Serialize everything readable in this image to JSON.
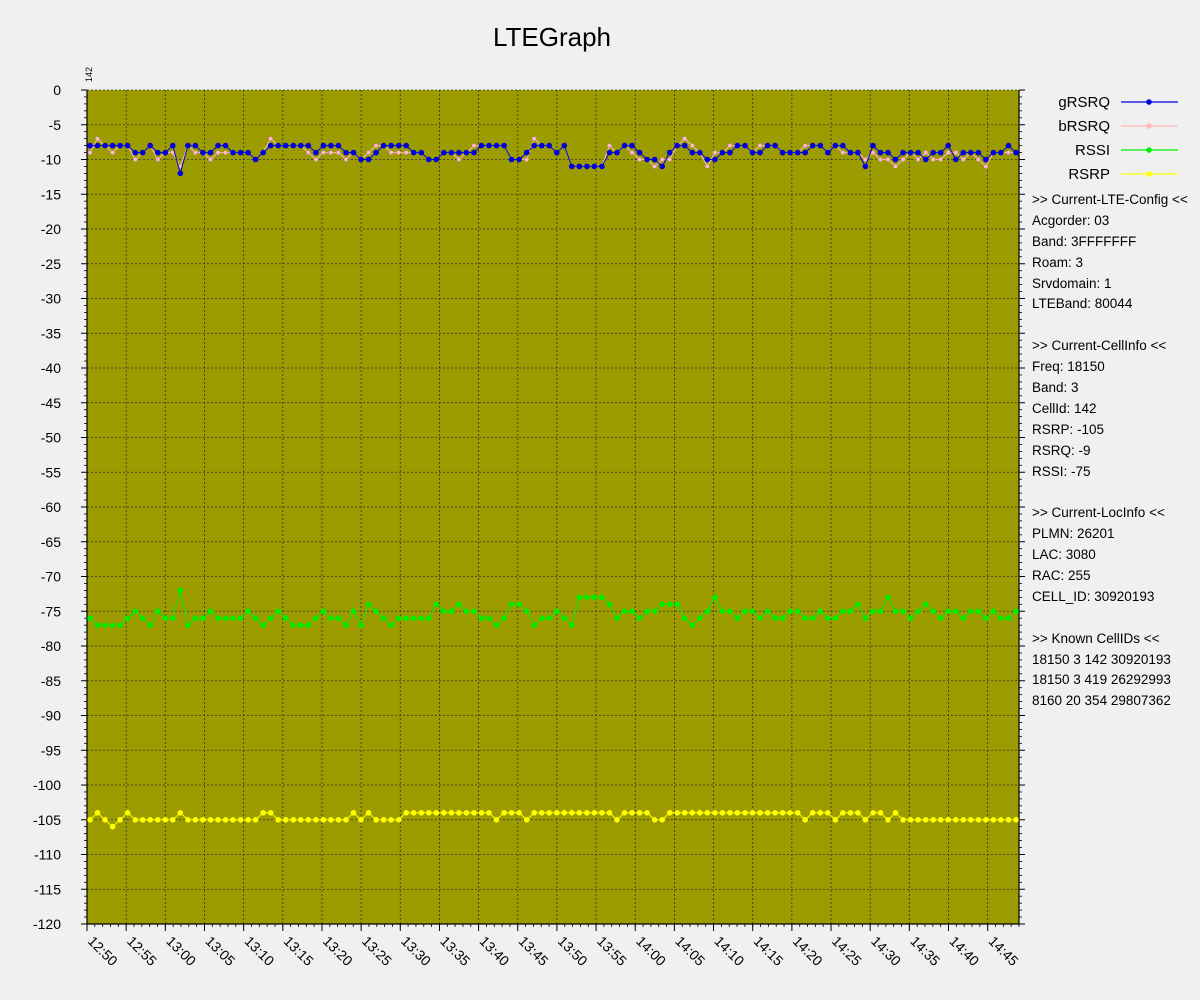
{
  "chart_data": {
    "type": "line",
    "title": "LTEGraph",
    "ylim": [
      -120,
      0
    ],
    "y_ticks": [
      0,
      -5,
      -10,
      -15,
      -20,
      -25,
      -30,
      -35,
      -40,
      -45,
      -50,
      -55,
      -60,
      -65,
      -70,
      -75,
      -80,
      -85,
      -90,
      -95,
      -100,
      -105,
      -110,
      -115,
      -120
    ],
    "x_ticks": [
      "12:50",
      "12:55",
      "13:00",
      "13:05",
      "13:10",
      "13:15",
      "13:20",
      "13:25",
      "13:30",
      "13:35",
      "13:40",
      "13:45",
      "13:50",
      "13:55",
      "14:00",
      "14:05",
      "14:10",
      "14:15",
      "14:20",
      "14:25",
      "14:30",
      "14:35",
      "14:40",
      "14:45"
    ],
    "x_range": [
      "12:50",
      "14:49"
    ],
    "grid": true,
    "plot_background": "#9c9c00",
    "corner_label": "142",
    "legend_position": "right-top",
    "series": [
      {
        "name": "gRSRQ",
        "color": "#0000dd",
        "values": [
          -8,
          -8,
          -8,
          -8,
          -8,
          -8,
          -9,
          -9,
          -8,
          -9,
          -9,
          -8,
          -12,
          -8,
          -8,
          -9,
          -9,
          -8,
          -8,
          -9,
          -9,
          -9,
          -10,
          -9,
          -8,
          -8,
          -8,
          -8,
          -8,
          -8,
          -9,
          -8,
          -8,
          -8,
          -9,
          -9,
          -10,
          -10,
          -9,
          -8,
          -8,
          -8,
          -8,
          -9,
          -9,
          -10,
          -10,
          -9,
          -9,
          -9,
          -9,
          -9,
          -8,
          -8,
          -8,
          -8,
          -10,
          -10,
          -9,
          -8,
          -8,
          -8,
          -9,
          -8,
          -11,
          -11,
          -11,
          -11,
          -11,
          -9,
          -9,
          -8,
          -8,
          -9,
          -10,
          -10,
          -11,
          -9,
          -8,
          -8,
          -9,
          -9,
          -10,
          -10,
          -9,
          -9,
          -8,
          -8,
          -9,
          -9,
          -8,
          -8,
          -9,
          -9,
          -9,
          -9,
          -8,
          -8,
          -9,
          -8,
          -8,
          -9,
          -9,
          -11,
          -8,
          -9,
          -9,
          -10,
          -9,
          -9,
          -9,
          -10,
          -9,
          -9,
          -8,
          -10,
          -9,
          -9,
          -9,
          -10,
          -9,
          -9,
          -8,
          -9
        ],
        "marker": "circle"
      },
      {
        "name": "bRSRQ",
        "color": "#ffbbbb",
        "values": [
          -9,
          -7,
          -8,
          -9,
          -8,
          -8,
          -10,
          -9,
          -8,
          -10,
          -9,
          -9,
          -11,
          -8,
          -9,
          -9,
          -10,
          -9,
          -9,
          -9,
          -9,
          -9,
          -10,
          -9,
          -7,
          -8,
          -8,
          -8,
          -8,
          -9,
          -10,
          -9,
          -9,
          -9,
          -10,
          -9,
          -10,
          -9,
          -8,
          -8,
          -9,
          -9,
          -9,
          -9,
          -9,
          -10,
          -10,
          -9,
          -9,
          -10,
          -9,
          -8,
          -8,
          -8,
          -8,
          -8,
          -10,
          -10,
          -10,
          -7,
          -8,
          -8,
          -9,
          -8,
          -11,
          -11,
          -11,
          -11,
          -11,
          -8,
          -9,
          -8,
          -9,
          -10,
          -10,
          -11,
          -10,
          -10,
          -8,
          -7,
          -8,
          -9,
          -11,
          -9,
          -9,
          -8,
          -8,
          -8,
          -9,
          -8,
          -8,
          -8,
          -9,
          -9,
          -9,
          -8,
          -8,
          -8,
          -9,
          -8,
          -9,
          -9,
          -9,
          -10,
          -9,
          -10,
          -10,
          -11,
          -10,
          -9,
          -10,
          -9,
          -10,
          -10,
          -9,
          -9,
          -10,
          -9,
          -10,
          -11,
          -9,
          -9,
          -9,
          -9
        ],
        "marker": "circle"
      },
      {
        "name": "RSSI",
        "color": "#00ee00",
        "values": [
          -76,
          -77,
          -77,
          -77,
          -77,
          -76,
          -75,
          -76,
          -77,
          -75,
          -76,
          -76,
          -72,
          -77,
          -76,
          -76,
          -75,
          -76,
          -76,
          -76,
          -76,
          -75,
          -76,
          -77,
          -76,
          -75,
          -76,
          -77,
          -77,
          -77,
          -76,
          -75,
          -76,
          -76,
          -77,
          -75,
          -77,
          -74,
          -75,
          -76,
          -77,
          -76,
          -76,
          -76,
          -76,
          -76,
          -74,
          -75,
          -75,
          -74,
          -75,
          -75,
          -76,
          -76,
          -77,
          -76,
          -74,
          -74,
          -75,
          -77,
          -76,
          -76,
          -75,
          -76,
          -77,
          -73,
          -73,
          -73,
          -73,
          -74,
          -76,
          -75,
          -75,
          -76,
          -75,
          -75,
          -74,
          -74,
          -74,
          -76,
          -77,
          -76,
          -75,
          -73,
          -75,
          -75,
          -76,
          -75,
          -75,
          -76,
          -75,
          -76,
          -76,
          -75,
          -75,
          -76,
          -76,
          -75,
          -76,
          -76,
          -75,
          -75,
          -74,
          -76,
          -75,
          -75,
          -73,
          -75,
          -75,
          -76,
          -75,
          -74,
          -75,
          -76,
          -75,
          -75,
          -76,
          -75,
          -75,
          -76,
          -75,
          -76,
          -76,
          -75
        ],
        "marker": "circle"
      },
      {
        "name": "RSRP",
        "color": "#ffff00",
        "values": [
          -105,
          -104,
          -105,
          -106,
          -105,
          -104,
          -105,
          -105,
          -105,
          -105,
          -105,
          -105,
          -104,
          -105,
          -105,
          -105,
          -105,
          -105,
          -105,
          -105,
          -105,
          -105,
          -105,
          -104,
          -104,
          -105,
          -105,
          -105,
          -105,
          -105,
          -105,
          -105,
          -105,
          -105,
          -105,
          -104,
          -105,
          -104,
          -105,
          -105,
          -105,
          -105,
          -104,
          -104,
          -104,
          -104,
          -104,
          -104,
          -104,
          -104,
          -104,
          -104,
          -104,
          -104,
          -105,
          -104,
          -104,
          -104,
          -105,
          -104,
          -104,
          -104,
          -104,
          -104,
          -104,
          -104,
          -104,
          -104,
          -104,
          -104,
          -105,
          -104,
          -104,
          -104,
          -104,
          -105,
          -105,
          -104,
          -104,
          -104,
          -104,
          -104,
          -104,
          -104,
          -104,
          -104,
          -104,
          -104,
          -104,
          -104,
          -104,
          -104,
          -104,
          -104,
          -104,
          -105,
          -104,
          -104,
          -104,
          -105,
          -104,
          -104,
          -104,
          -105,
          -104,
          -104,
          -105,
          -104,
          -105,
          -105,
          -105,
          -105,
          -105,
          -105,
          -105,
          -105,
          -105,
          -105,
          -105,
          -105,
          -105,
          -105,
          -105,
          -105
        ],
        "marker": "circle"
      }
    ]
  },
  "info_panel": [
    ">> Current-LTE-Config <<",
    "Acgorder: 03",
    "Band: 3FFFFFFF",
    "Roam: 3",
    "Srvdomain: 1",
    "LTEBand: 80044",
    "",
    ">> Current-CellInfo <<",
    "Freq: 18150",
    "Band: 3",
    "CellId: 142",
    "RSRP: -105",
    "RSRQ: -9",
    "RSSI: -75",
    "",
    ">> Current-LocInfo <<",
    "PLMN: 26201",
    "LAC: 3080",
    "RAC: 255",
    "CELL_ID: 30920193",
    "",
    ">> Known CellIDs <<",
    "18150 3 142 30920193",
    "18150 3 419 26292993",
    "8160 20 354 29807362"
  ]
}
